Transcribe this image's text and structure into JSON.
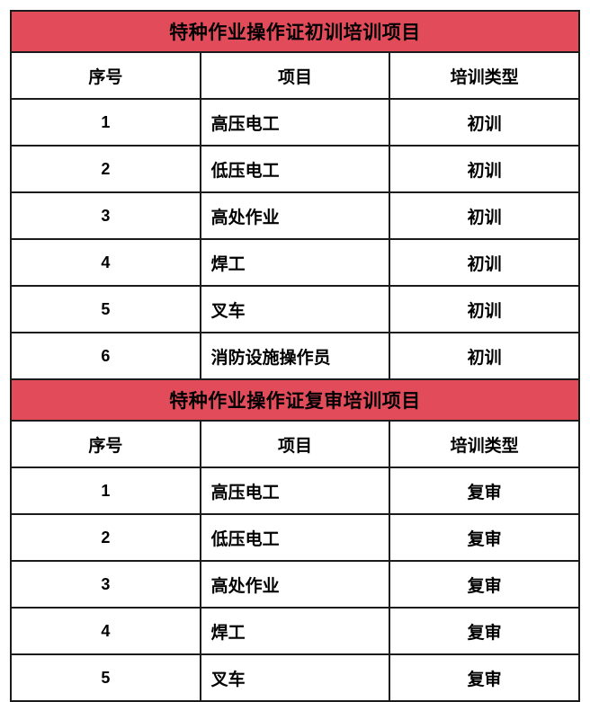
{
  "page": {
    "background": "#ffffff",
    "band_color": "#e14b5a",
    "border_color": "#1b1b1b",
    "text_color": "#000000"
  },
  "tables": [
    {
      "title": "特种作业操作证初训培训项目",
      "columns": {
        "no": "序号",
        "project": "项目",
        "type": "培训类型"
      },
      "rows": [
        {
          "no": "1",
          "project": "高压电工",
          "type": "初训"
        },
        {
          "no": "2",
          "project": "低压电工",
          "type": "初训"
        },
        {
          "no": "3",
          "project": "高处作业",
          "type": "初训"
        },
        {
          "no": "4",
          "project": "焊工",
          "type": "初训"
        },
        {
          "no": "5",
          "project": "叉车",
          "type": "初训"
        },
        {
          "no": "6",
          "project": "消防设施操作员",
          "type": "初训"
        }
      ]
    },
    {
      "title": "特种作业操作证复审培训项目",
      "columns": {
        "no": "序号",
        "project": "项目",
        "type": "培训类型"
      },
      "rows": [
        {
          "no": "1",
          "project": "高压电工",
          "type": "复审"
        },
        {
          "no": "2",
          "project": "低压电工",
          "type": "复审"
        },
        {
          "no": "3",
          "project": "高处作业",
          "type": "复审"
        },
        {
          "no": "4",
          "project": "焊工",
          "type": "复审"
        },
        {
          "no": "5",
          "project": "叉车",
          "type": "复审"
        }
      ]
    }
  ]
}
